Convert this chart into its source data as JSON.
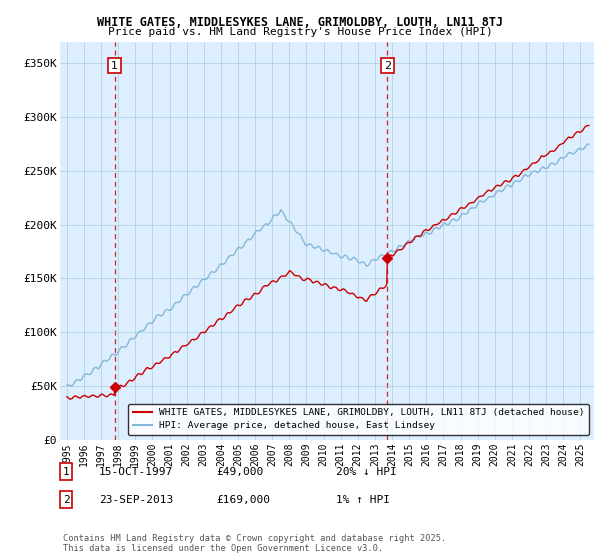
{
  "title1": "WHITE GATES, MIDDLESYKES LANE, GRIMOLDBY, LOUTH, LN11 8TJ",
  "title2": "Price paid vs. HM Land Registry's House Price Index (HPI)",
  "xlim_left": 1994.6,
  "xlim_right": 2025.8,
  "ylim": [
    0,
    370000
  ],
  "yticks": [
    0,
    50000,
    100000,
    150000,
    200000,
    250000,
    300000,
    350000
  ],
  "ytick_labels": [
    "£0",
    "£50K",
    "£100K",
    "£150K",
    "£200K",
    "£250K",
    "£300K",
    "£350K"
  ],
  "xticks": [
    1995,
    1996,
    1997,
    1998,
    1999,
    2000,
    2001,
    2002,
    2003,
    2004,
    2005,
    2006,
    2007,
    2008,
    2009,
    2010,
    2011,
    2012,
    2013,
    2014,
    2015,
    2016,
    2017,
    2018,
    2019,
    2020,
    2021,
    2022,
    2023,
    2024,
    2025
  ],
  "sale1_x": 1997.79,
  "sale1_y": 49000,
  "sale2_x": 2013.73,
  "sale2_y": 169000,
  "legend_line1": "WHITE GATES, MIDDLESYKES LANE, GRIMOLDBY, LOUTH, LN11 8TJ (detached house)",
  "legend_line2": "HPI: Average price, detached house, East Lindsey",
  "note1_num": "1",
  "note1_date": "15-OCT-1997",
  "note1_price": "£49,000",
  "note1_hpi": "20% ↓ HPI",
  "note2_num": "2",
  "note2_date": "23-SEP-2013",
  "note2_price": "£169,000",
  "note2_hpi": "1% ↑ HPI",
  "copyright": "Contains HM Land Registry data © Crown copyright and database right 2025.\nThis data is licensed under the Open Government Licence v3.0.",
  "red_color": "#cc0000",
  "blue_color": "#85b8d8",
  "bg_plot": "#ddeeff",
  "bg_fig": "#ffffff",
  "grid_color": "#aaccdd"
}
